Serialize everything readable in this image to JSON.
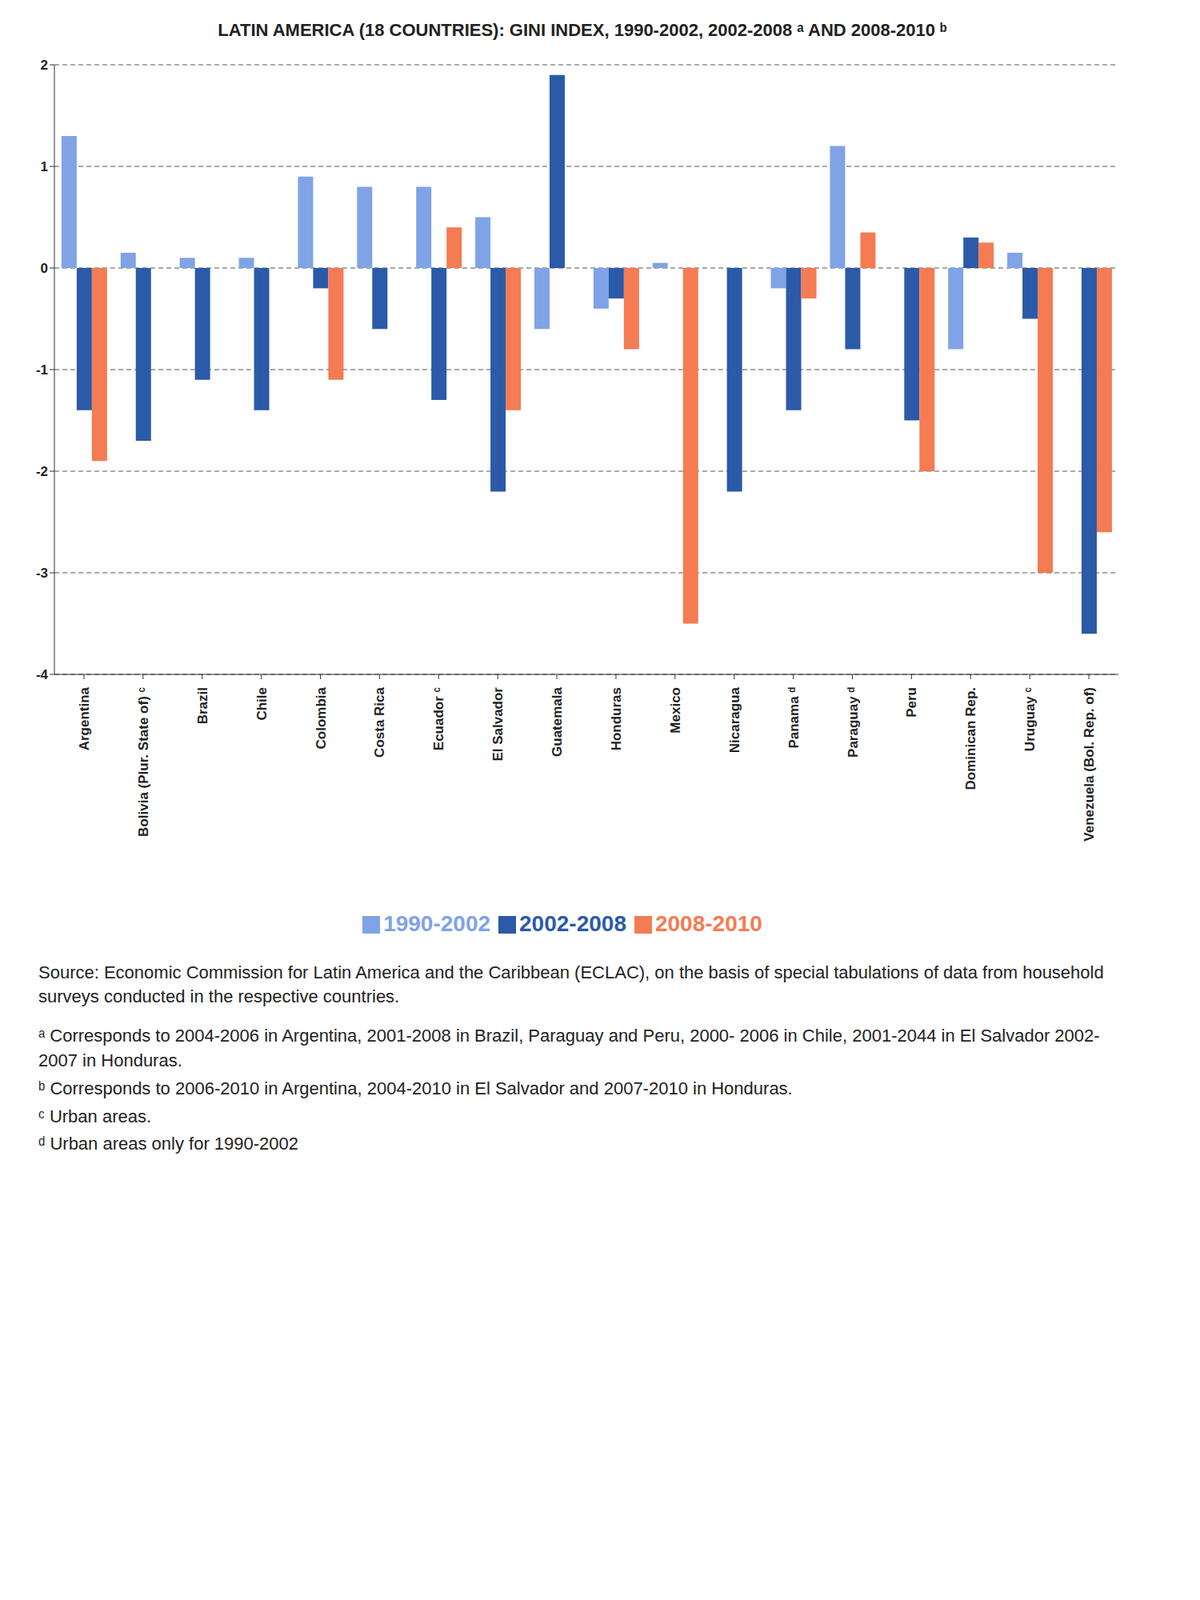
{
  "chart_data": {
    "type": "bar",
    "title": "LATIN AMERICA (18 COUNTRIES): GINI INDEX, 1990-2002, 2002-2008 ᵃ AND 2008-2010 ᵇ",
    "categories": [
      "Argentina",
      "Bolivia (Plur. State of) ᶜ",
      "Brazil",
      "Chile",
      "Colombia",
      "Costa Rica",
      "Ecuador ᶜ",
      "El Salvador",
      "Guatemala",
      "Honduras",
      "Mexico",
      "Nicaragua",
      "Panama ᵈ",
      "Paraguay ᵈ",
      "Peru",
      "Dominican Rep.",
      "Uruguay ᶜ",
      "Venezuela (Bol. Rep. of)"
    ],
    "series": [
      {
        "name": "1990-2002",
        "color": "#7fa3e6",
        "values": [
          1.3,
          0.15,
          0.1,
          0.1,
          0.9,
          0.8,
          0.8,
          0.5,
          -0.6,
          -0.4,
          0.05,
          null,
          -0.2,
          1.2,
          null,
          -0.8,
          0.15,
          null
        ]
      },
      {
        "name": "2002-2008",
        "color": "#2b5aa8",
        "values": [
          -1.4,
          -1.7,
          -1.1,
          -1.4,
          -0.2,
          -0.6,
          -1.3,
          -2.2,
          1.9,
          -0.3,
          null,
          -2.2,
          -1.4,
          -0.8,
          -1.5,
          0.3,
          -0.5,
          -3.6
        ]
      },
      {
        "name": "2008-2010",
        "color": "#f47b52",
        "values": [
          -1.9,
          null,
          null,
          null,
          -1.1,
          null,
          0.4,
          -1.4,
          null,
          -0.8,
          -3.5,
          null,
          -0.3,
          0.35,
          -2.0,
          0.25,
          -3.0,
          -2.6
        ]
      }
    ],
    "ylim": [
      -4,
      2
    ],
    "yticks": [
      -4,
      -3,
      -2,
      -1,
      0,
      1,
      2
    ],
    "grid": true,
    "legend": "bottom",
    "annotations": [
      "Source: Economic Commission for Latin America and the Caribbean (ECLAC), on the basis of special tabulations of data from household surveys conducted in the respective countries.",
      "ᵃ Corresponds to 2004-2006 in Argentina, 2001-2008 in Brazil, Paraguay and Peru, 2000- 2006 in Chile, 2001-2044 in El Salvador 2002-2007 in Honduras.",
      "ᵇ Corresponds to 2006-2010 in Argentina, 2004-2010 in El Salvador and 2007-2010 in Honduras.",
      "ᶜ Urban areas.",
      "ᵈ Urban areas only for 1990-2002"
    ]
  }
}
